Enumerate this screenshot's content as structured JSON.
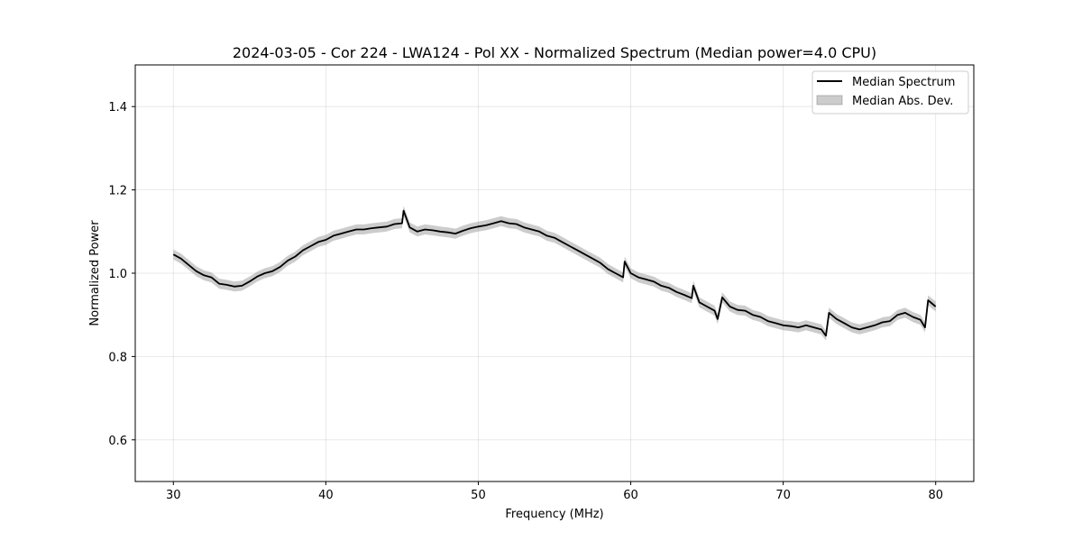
{
  "chart_data": {
    "type": "line",
    "title": "2024-03-05 - Cor 224 - LWA124 - Pol XX - Normalized Spectrum (Median power=4.0 CPU)",
    "xlabel": "Frequency (MHz)",
    "ylabel": "Normalized Power",
    "xlim": [
      27.5,
      82.5
    ],
    "ylim": [
      0.5,
      1.5
    ],
    "x_ticks": [
      30,
      40,
      50,
      60,
      70,
      80
    ],
    "y_ticks": [
      0.6,
      0.8,
      1.0,
      1.2,
      1.4
    ],
    "x_tick_labels": [
      "30",
      "40",
      "50",
      "60",
      "70",
      "80"
    ],
    "y_tick_labels": [
      "0.6",
      "0.8",
      "1.0",
      "1.2",
      "1.4"
    ],
    "grid": true,
    "legend": {
      "position": "top-right",
      "entries": [
        "Median Spectrum",
        "Median Abs. Dev."
      ]
    },
    "series": [
      {
        "name": "Median Spectrum",
        "color": "#000000",
        "mad": 0.012,
        "x": [
          30,
          30.5,
          31,
          31.5,
          32,
          32.5,
          33,
          33.5,
          34,
          34.5,
          35,
          35.5,
          36,
          36.5,
          37,
          37.5,
          38,
          38.5,
          39,
          39.5,
          40,
          40.5,
          41,
          41.5,
          42,
          42.5,
          43,
          43.5,
          44,
          44.5,
          45,
          45.1,
          45.5,
          46,
          46.5,
          47,
          47.5,
          48,
          48.5,
          49,
          49.5,
          50,
          50.5,
          51,
          51.5,
          52,
          52.5,
          53,
          53.5,
          54,
          54.5,
          55,
          55.5,
          56,
          56.5,
          57,
          57.5,
          58,
          58.5,
          59,
          59.5,
          59.6,
          60,
          60.5,
          61,
          61.5,
          62,
          62.5,
          63,
          63.5,
          64,
          64.1,
          64.5,
          65,
          65.5,
          65.7,
          66,
          66.5,
          67,
          67.5,
          68,
          68.5,
          69,
          69.5,
          70,
          70.5,
          71,
          71.5,
          72,
          72.5,
          72.8,
          73,
          73.5,
          74,
          74.5,
          75,
          75.5,
          76,
          76.5,
          77,
          77.5,
          78,
          78.5,
          79,
          79.3,
          79.5,
          80
        ],
        "y": [
          1.045,
          1.035,
          1.02,
          1.005,
          0.995,
          0.99,
          0.975,
          0.972,
          0.968,
          0.97,
          0.98,
          0.992,
          1.0,
          1.005,
          1.015,
          1.03,
          1.04,
          1.055,
          1.065,
          1.075,
          1.08,
          1.09,
          1.095,
          1.1,
          1.105,
          1.105,
          1.108,
          1.11,
          1.112,
          1.118,
          1.12,
          1.15,
          1.11,
          1.1,
          1.105,
          1.103,
          1.1,
          1.098,
          1.095,
          1.102,
          1.108,
          1.112,
          1.115,
          1.12,
          1.125,
          1.12,
          1.118,
          1.11,
          1.105,
          1.1,
          1.09,
          1.085,
          1.075,
          1.065,
          1.055,
          1.045,
          1.035,
          1.025,
          1.01,
          1.0,
          0.99,
          1.028,
          1.0,
          0.99,
          0.985,
          0.98,
          0.97,
          0.965,
          0.955,
          0.948,
          0.94,
          0.97,
          0.93,
          0.92,
          0.91,
          0.89,
          0.942,
          0.92,
          0.912,
          0.91,
          0.9,
          0.895,
          0.885,
          0.88,
          0.875,
          0.873,
          0.87,
          0.875,
          0.87,
          0.865,
          0.85,
          0.905,
          0.89,
          0.88,
          0.87,
          0.865,
          0.87,
          0.875,
          0.882,
          0.885,
          0.9,
          0.905,
          0.895,
          0.888,
          0.87,
          0.935,
          0.92
        ]
      }
    ]
  }
}
